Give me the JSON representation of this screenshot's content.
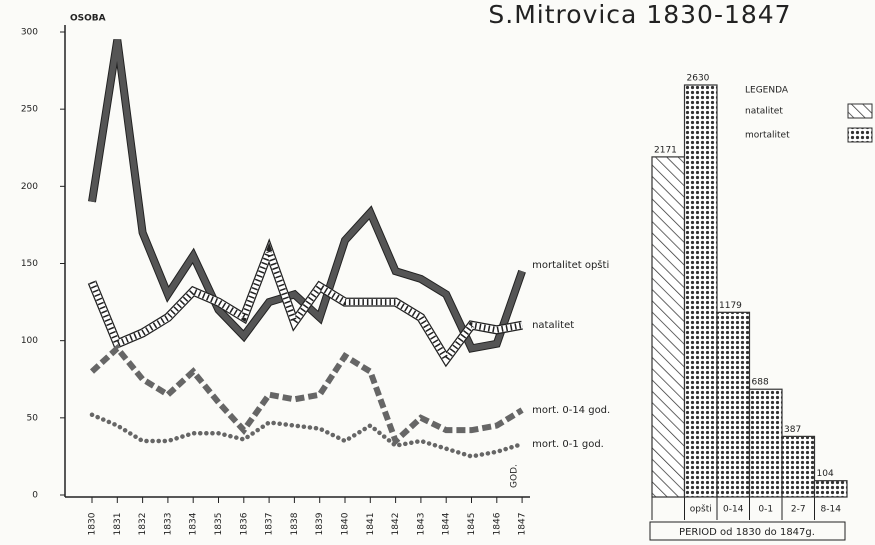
{
  "chart_data": [
    {
      "type": "line",
      "title": "S.Mitrovica 1830-1847",
      "y_label": "OSOBA",
      "x_label": "GOD.",
      "categories": [
        "1830",
        "1831",
        "1832",
        "1833",
        "1834",
        "1835",
        "1836",
        "1837",
        "1838",
        "1839",
        "1840",
        "1841",
        "1842",
        "1843",
        "1844",
        "1845",
        "1846",
        "1847"
      ],
      "ylim": [
        0,
        300
      ],
      "yticks": [
        0,
        50,
        100,
        150,
        200,
        250,
        300
      ],
      "series": [
        {
          "name": "mortalitet opšti",
          "color": "#555555",
          "line_style": "solid",
          "values": [
            190,
            295,
            170,
            130,
            155,
            120,
            103,
            125,
            130,
            115,
            165,
            183,
            145,
            140,
            130,
            95,
            98,
            145
          ]
        },
        {
          "name": "natalitet",
          "color": "#ffffff",
          "line_style": "striped",
          "values": [
            138,
            98,
            105,
            115,
            132,
            125,
            115,
            158,
            112,
            135,
            125,
            125,
            125,
            115,
            88,
            110,
            107,
            110
          ]
        },
        {
          "name": "mort. 0-14 god.",
          "color": "#666666",
          "line_style": "dashed",
          "values": [
            80,
            95,
            75,
            65,
            80,
            60,
            42,
            65,
            62,
            65,
            90,
            80,
            35,
            50,
            42,
            42,
            45,
            55
          ]
        },
        {
          "name": "mort. 0-1 god.",
          "color": "#666666",
          "line_style": "dotted",
          "values": [
            52,
            45,
            35,
            35,
            40,
            40,
            36,
            47,
            45,
            43,
            35,
            45,
            32,
            35,
            30,
            25,
            28,
            33
          ]
        }
      ]
    },
    {
      "type": "bar",
      "legend_title": "LEGENDA",
      "x_label": "PERIOD od 1830 do 1847g.",
      "categories": [
        null,
        "opšti",
        "0-14",
        "0-1",
        "2-7",
        "8-14"
      ],
      "series": [
        {
          "name": "natalitet",
          "color": "#333333",
          "pattern": "hatch",
          "values": [
            2171,
            null,
            null,
            null,
            null,
            null
          ]
        },
        {
          "name": "mortalitet",
          "color": "#333333",
          "pattern": "dots",
          "values": [
            null,
            2630,
            1179,
            688,
            387,
            104
          ]
        }
      ]
    }
  ]
}
